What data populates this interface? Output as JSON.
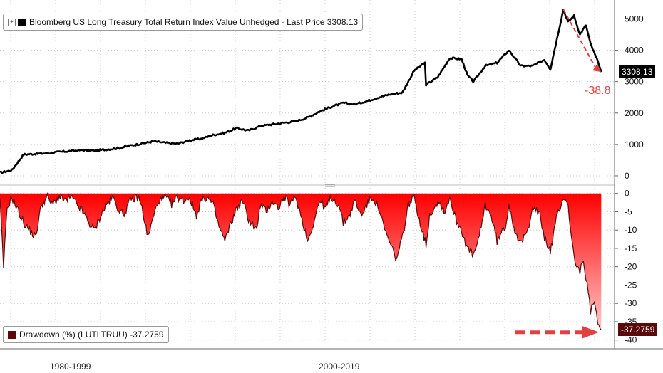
{
  "chart_data": [
    {
      "type": "line",
      "legend": "Bloomberg US Long Treasury Total Return Index Value Unhedged - Last Price 3308.13",
      "last_value_label": "3308.13",
      "annotation": "-38.8",
      "ylim": [
        -250,
        5600
      ],
      "yticks": [
        0,
        1000,
        2000,
        3000,
        4000,
        5000
      ],
      "grid": true,
      "colors": {
        "line": "#000000",
        "tag": "#000000",
        "annotation": "#e04040"
      },
      "series": [
        {
          "x": [
            1973,
            1974,
            1975,
            1976,
            1977,
            1978,
            1979,
            1980,
            1981,
            1982,
            1983,
            1984,
            1985,
            1986,
            1987,
            1988,
            1989,
            1990,
            1991,
            1992,
            1993,
            1994,
            1995,
            1996,
            1997,
            1998,
            1999,
            2000,
            2001,
            2002,
            2003,
            2004,
            2005,
            2006,
            2007,
            2008,
            2008.9,
            2009,
            2010,
            2011,
            2012,
            2012.5,
            2013,
            2014,
            2015,
            2016,
            2017,
            2018,
            2019,
            2019.5,
            2020.6,
            2021,
            2021.5,
            2022,
            2022.5,
            2022.9,
            2023.6,
            2023.8
          ],
          "y": [
            100,
            180,
            680,
            700,
            720,
            760,
            790,
            820,
            800,
            840,
            880,
            960,
            1030,
            1100,
            1050,
            1020,
            1130,
            1180,
            1300,
            1370,
            1520,
            1440,
            1590,
            1640,
            1690,
            1740,
            1860,
            2050,
            2200,
            2320,
            2280,
            2380,
            2500,
            2600,
            2650,
            3350,
            3600,
            2900,
            3150,
            3750,
            3720,
            3200,
            3000,
            3500,
            3600,
            4000,
            3500,
            3500,
            3700,
            3400,
            5300,
            4900,
            5100,
            4500,
            4800,
            4200,
            3550,
            3308
          ]
        }
      ]
    },
    {
      "type": "area",
      "legend": "Drawdown (%) (LUTLTRUU) -37.2759",
      "last_value_label": "-37.2759",
      "ylim": [
        -42,
        1.5
      ],
      "yticks": [
        0,
        -5,
        -10,
        -15,
        -20,
        -25,
        -30,
        -35,
        -40
      ],
      "grid": true,
      "colors": {
        "fill_top": "#ff0000",
        "fill_bottom": "#ffc8c8",
        "line": "#5a0a0a",
        "tag": "#5a0a0a",
        "arrow": "#e04040"
      },
      "series": [
        {
          "x": [
            1973,
            1973.3,
            1973.6,
            1974,
            1975,
            1975.5,
            1976,
            1976.5,
            1977,
            1977.4,
            1978,
            1978.6,
            1979,
            1980,
            1980.5,
            1981,
            1981.5,
            1982,
            1982.5,
            1983,
            1983.4,
            1984,
            1984.7,
            1985,
            1985.5,
            1986,
            1986.4,
            1987,
            1987.5,
            1988,
            1988.5,
            1989,
            1989.6,
            1990,
            1990.5,
            1991,
            1991.5,
            1992,
            1992.3,
            1993,
            1993.5,
            1994,
            1994.7,
            1995,
            1995.5,
            1996,
            1996.5,
            1997,
            1997.5,
            1998,
            1998.6,
            1999,
            1999.4,
            2000,
            2000.5,
            2001,
            2001.6,
            2002,
            2002.5,
            2003,
            2003.5,
            2004,
            2004.5,
            2005,
            2005.5,
            2006,
            2006.5,
            2007,
            2007.5,
            2008,
            2008.5,
            2009,
            2009.3,
            2010,
            2010.6,
            2011,
            2011.5,
            2012,
            2012.5,
            2013,
            2013.5,
            2014,
            2014.5,
            2015,
            2015.7,
            2016,
            2016.5,
            2017,
            2017.6,
            2018,
            2018.6,
            2019,
            2019.5,
            2020,
            2020.6,
            2021,
            2021.3,
            2021.7,
            2022,
            2022.3,
            2022.6,
            2022.9,
            2023.2,
            2023.6,
            2023.8
          ],
          "y": [
            -2,
            -20,
            -4,
            -1,
            -8,
            -10,
            -12,
            -3,
            -1,
            -3,
            -1,
            -2,
            -1,
            -5,
            -8,
            -10,
            -6,
            -3,
            -1,
            -4,
            -6,
            -2,
            -1,
            -4,
            -12,
            -6,
            -2,
            -1,
            -3,
            -1,
            -2,
            -1,
            -6,
            -2,
            -1,
            -3,
            -9,
            -13,
            -10,
            -4,
            -2,
            -7,
            -10,
            -3,
            -5,
            -2,
            -4,
            -1,
            -3,
            -1,
            -8,
            -13,
            -9,
            -2,
            -4,
            -1,
            -3,
            -8,
            -6,
            -2,
            -6,
            -3,
            -1,
            -4,
            -10,
            -14,
            -18,
            -12,
            -3,
            -1,
            -8,
            -14,
            -6,
            -2,
            -5,
            -1,
            -7,
            -10,
            -15,
            -17,
            -12,
            -3,
            -6,
            -13,
            -9,
            -3,
            -10,
            -14,
            -10,
            -3,
            -6,
            -12,
            -16,
            -7,
            -1,
            -3,
            -13,
            -20,
            -21,
            -19,
            -25,
            -32,
            -30,
            -36,
            -37.3
          ]
        }
      ]
    }
  ],
  "periods": [
    "1980-1999",
    "2000-2019"
  ]
}
